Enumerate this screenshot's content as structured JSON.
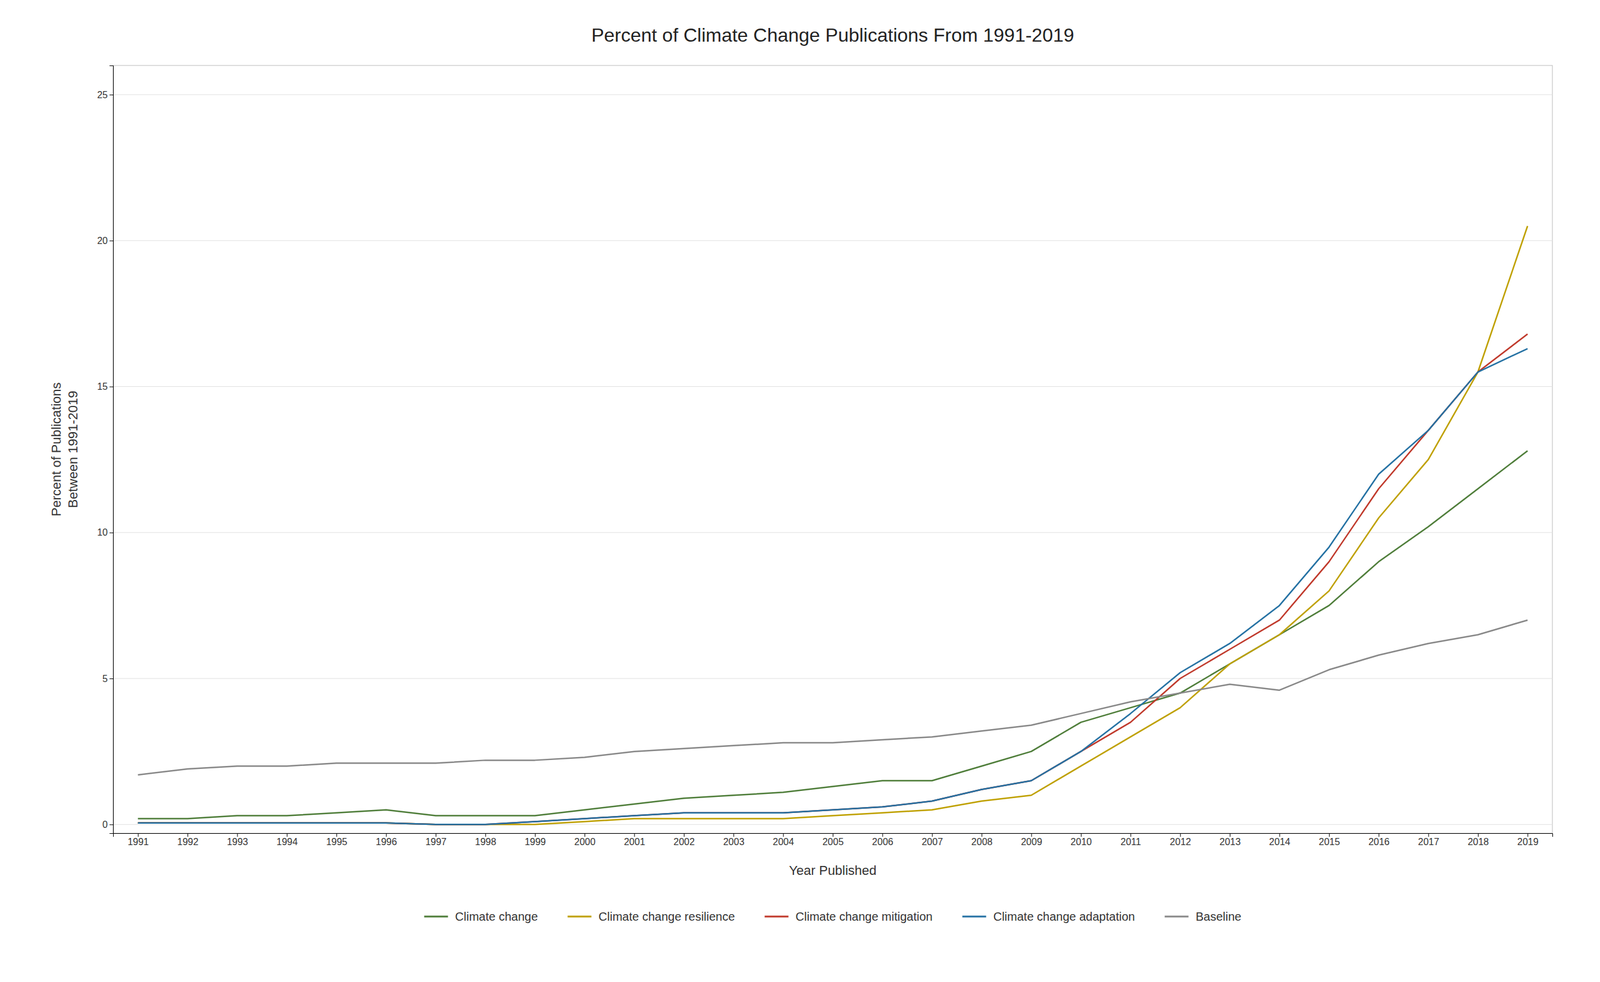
{
  "chart_data": {
    "type": "line",
    "title": "Percent of Climate Change Publications From 1991-2019",
    "xlabel": "Year Published",
    "ylabel": "Percent of Publications\nBetween 1991-2019",
    "x": [
      1991,
      1992,
      1993,
      1994,
      1995,
      1996,
      1997,
      1998,
      1999,
      2000,
      2001,
      2002,
      2003,
      2004,
      2005,
      2006,
      2007,
      2008,
      2009,
      2010,
      2011,
      2012,
      2013,
      2014,
      2015,
      2016,
      2017,
      2018,
      2019
    ],
    "series": [
      {
        "name": "Climate change",
        "color": "#4e7d39",
        "values": [
          0.2,
          0.2,
          0.3,
          0.3,
          0.4,
          0.5,
          0.3,
          0.3,
          0.3,
          0.5,
          0.7,
          0.9,
          1.0,
          1.1,
          1.3,
          1.5,
          1.5,
          2.0,
          2.5,
          3.5,
          4.0,
          4.5,
          5.5,
          6.5,
          7.5,
          9.0,
          10.2,
          11.5,
          12.8
        ]
      },
      {
        "name": "Climate change resilience",
        "color": "#bfa000",
        "values": [
          0.05,
          0.05,
          0.05,
          0.05,
          0.05,
          0.05,
          0.0,
          0.0,
          0.0,
          0.1,
          0.2,
          0.2,
          0.2,
          0.2,
          0.3,
          0.4,
          0.5,
          0.8,
          1.0,
          2.0,
          3.0,
          4.0,
          5.5,
          6.5,
          8.0,
          10.5,
          12.5,
          15.5,
          20.5
        ]
      },
      {
        "name": "Climate change mitigation",
        "color": "#c0392b",
        "values": [
          0.05,
          0.05,
          0.05,
          0.05,
          0.05,
          0.05,
          0.0,
          0.0,
          0.1,
          0.2,
          0.3,
          0.4,
          0.4,
          0.4,
          0.5,
          0.6,
          0.8,
          1.2,
          1.5,
          2.5,
          3.5,
          5.0,
          6.0,
          7.0,
          9.0,
          11.5,
          13.5,
          15.5,
          16.8
        ]
      },
      {
        "name": "Climate change adaptation",
        "color": "#2471a3",
        "values": [
          0.05,
          0.05,
          0.05,
          0.05,
          0.05,
          0.05,
          0.0,
          0.0,
          0.1,
          0.2,
          0.3,
          0.4,
          0.4,
          0.4,
          0.5,
          0.6,
          0.8,
          1.2,
          1.5,
          2.5,
          3.8,
          5.2,
          6.2,
          7.5,
          9.5,
          12.0,
          13.5,
          15.5,
          16.3
        ]
      },
      {
        "name": "Baseline",
        "color": "#888888",
        "values": [
          1.7,
          1.9,
          2.0,
          2.0,
          2.1,
          2.1,
          2.1,
          2.2,
          2.2,
          2.3,
          2.5,
          2.6,
          2.7,
          2.8,
          2.8,
          2.9,
          3.0,
          3.2,
          3.4,
          3.8,
          4.2,
          4.5,
          4.8,
          4.6,
          5.3,
          5.8,
          6.2,
          6.5,
          7.0
        ]
      }
    ],
    "xlim": [
      1990.5,
      2019.5
    ],
    "xticks": [
      1991,
      1992,
      1993,
      1994,
      1995,
      1996,
      1997,
      1998,
      1999,
      2000,
      2001,
      2002,
      2003,
      2004,
      2005,
      2006,
      2007,
      2008,
      2009,
      2010,
      2011,
      2012,
      2013,
      2014,
      2015,
      2016,
      2017,
      2018,
      2019
    ],
    "ylim": [
      -0.3,
      26
    ],
    "yticks": [
      0,
      5,
      10,
      15,
      20,
      25
    ],
    "grid": true,
    "legend": "bottom"
  }
}
